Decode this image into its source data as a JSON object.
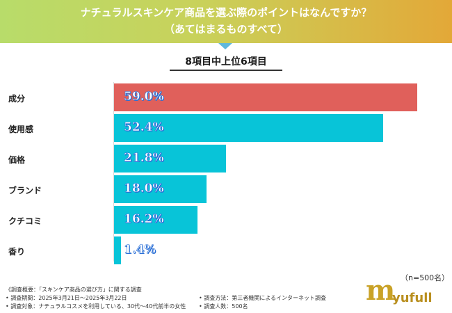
{
  "header": {
    "title_line1": "ナチュラルスキンケア商品を選ぶ際のポイントはなんですか？",
    "title_line2": "（あてはまるものすべて）"
  },
  "subtitle": "8項目中上位6項目",
  "colors": {
    "highlight": "#e0605b",
    "default_bar": "#08c4d8",
    "header_start": "#b8dc6a",
    "header_end": "#e3a838"
  },
  "chart_data": {
    "type": "bar",
    "orientation": "horizontal",
    "title": "ナチュラルスキンケア商品を選ぶ際のポイントはなんですか？（あてはまるものすべて）",
    "subtitle": "8項目中上位6項目",
    "categories": [
      "成分",
      "使用感",
      "価格",
      "ブランド",
      "クチコミ",
      "香り"
    ],
    "values": [
      59.0,
      52.4,
      21.8,
      18.0,
      16.2,
      1.4
    ],
    "value_labels": [
      "59.0%",
      "52.4%",
      "21.8%",
      "18.0%",
      "16.2%",
      "1.4%"
    ],
    "unit": "%",
    "xlim": [
      0,
      100
    ],
    "highlight_index": 0
  },
  "sample_note": "（n=500名）",
  "footnotes": {
    "survey_summary": "《調査概要：「スキンケア商品の選び方」に関する調査",
    "period": "• 調査期間：2025年3月21日〜2025年3月22日",
    "target": "• 調査対象：ナチュラルコスメを利用している、30代〜40代前半の女性",
    "method": "• 調査方法：第三者機関によるインターネット調査",
    "respondents": "• 調査人数：500名"
  },
  "logo": {
    "mark": "m",
    "text": "yufull"
  }
}
